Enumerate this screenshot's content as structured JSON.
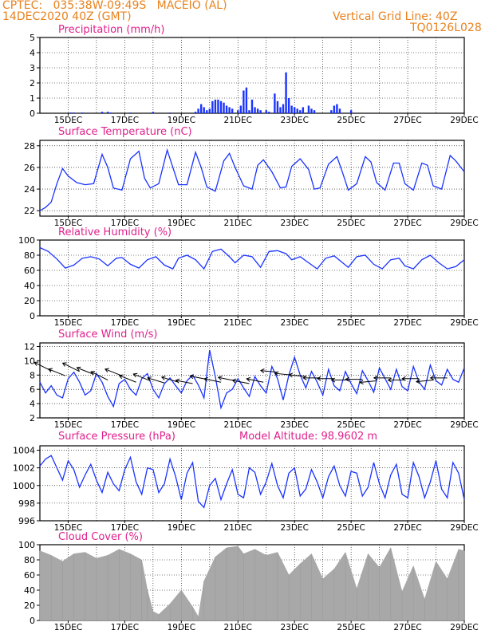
{
  "header": {
    "line1": "CPTEC:   035:38W-09:49S   MACEIO (AL)",
    "line2": "14DEC2020 40Z (GMT)",
    "vgrid": "Vertical Grid Line: 40Z",
    "code": "TQ0126L028"
  },
  "colors": {
    "header": "#e8821e",
    "title": "#e0208c",
    "series": "#1a33ff",
    "cloud": "#a8a8a8"
  },
  "x_ticks": [
    "15DEC",
    "17DEC",
    "19DEC",
    "21DEC",
    "23DEC",
    "25DEC",
    "27DEC",
    "29DEC"
  ],
  "chart_data": [
    {
      "type": "bar",
      "title": "Precipitation (mm/h)",
      "ylim": [
        0,
        5
      ],
      "yticks": [
        0,
        1,
        2,
        3,
        4,
        5
      ],
      "series": [
        {
          "x": [
            15.1,
            15.2,
            15.5,
            16.2,
            16.4,
            16.5,
            17.2,
            18.0,
            18.6,
            19.5,
            19.6,
            19.7,
            19.8,
            19.9,
            20.0,
            20.1,
            20.2,
            20.3,
            20.4,
            20.5,
            20.6,
            20.7,
            20.8,
            21.0,
            21.1,
            21.2,
            21.3,
            21.4,
            21.5,
            21.6,
            21.7,
            21.8,
            22.0,
            22.1,
            22.3,
            22.4,
            22.5,
            22.6,
            22.7,
            22.8,
            22.9,
            23.0,
            23.1,
            23.2,
            23.3,
            23.5,
            23.6,
            23.7,
            24.3,
            24.4,
            24.5,
            24.6,
            25.0
          ],
          "values": [
            0.05,
            0.05,
            0.05,
            0.1,
            0.1,
            0.05,
            0.05,
            0.1,
            0.05,
            0.1,
            0.3,
            0.6,
            0.4,
            0.2,
            0.3,
            0.8,
            0.9,
            0.9,
            0.8,
            0.7,
            0.5,
            0.4,
            0.3,
            0.2,
            0.5,
            1.5,
            1.7,
            0.2,
            0.9,
            0.4,
            0.3,
            0.2,
            0.2,
            0.1,
            1.3,
            0.8,
            0.4,
            0.6,
            2.7,
            1.0,
            0.5,
            0.4,
            0.3,
            0.2,
            0.4,
            0.5,
            0.3,
            0.2,
            0.2,
            0.5,
            0.6,
            0.3,
            0.2
          ]
        }
      ]
    },
    {
      "type": "line",
      "title": "Surface Temperature (nC)",
      "ylim": [
        21.5,
        28.5
      ],
      "yticks": [
        22,
        24,
        26,
        28
      ],
      "series": [
        {
          "x": [
            14.0,
            14.2,
            14.4,
            14.6,
            14.8,
            15.0,
            15.3,
            15.6,
            15.9,
            16.2,
            16.4,
            16.6,
            16.9,
            17.2,
            17.5,
            17.7,
            17.9,
            18.2,
            18.5,
            18.7,
            18.9,
            19.2,
            19.5,
            19.7,
            19.9,
            20.2,
            20.5,
            20.7,
            20.9,
            21.2,
            21.5,
            21.7,
            21.9,
            22.2,
            22.5,
            22.7,
            22.9,
            23.2,
            23.5,
            23.7,
            23.9,
            24.2,
            24.5,
            24.7,
            24.9,
            25.2,
            25.5,
            25.7,
            25.9,
            26.2,
            26.5,
            26.7,
            26.9,
            27.2,
            27.5,
            27.7,
            27.9,
            28.2,
            28.5,
            28.7,
            29.0
          ],
          "values": [
            22.0,
            22.3,
            22.8,
            24.5,
            25.9,
            25.2,
            24.6,
            24.4,
            24.5,
            27.2,
            26.0,
            24.1,
            23.9,
            26.8,
            27.5,
            25.0,
            24.1,
            24.5,
            27.6,
            26.0,
            24.4,
            24.4,
            27.4,
            26.0,
            24.2,
            23.8,
            26.6,
            27.3,
            26.0,
            24.3,
            24.0,
            26.2,
            26.7,
            25.6,
            24.1,
            24.2,
            26.1,
            26.8,
            25.8,
            24.0,
            24.1,
            26.3,
            27.0,
            25.5,
            23.9,
            24.5,
            27.0,
            26.5,
            24.6,
            23.9,
            26.4,
            26.4,
            24.5,
            23.9,
            26.4,
            26.2,
            24.3,
            24.0,
            27.1,
            26.6,
            25.6
          ]
        }
      ]
    },
    {
      "type": "line",
      "title": "Relative Humidity (%)",
      "ylim": [
        0,
        100
      ],
      "yticks": [
        0,
        20,
        40,
        60,
        80,
        100
      ],
      "series": [
        {
          "x": [
            14.0,
            14.3,
            14.6,
            14.9,
            15.2,
            15.5,
            15.8,
            16.1,
            16.4,
            16.7,
            16.9,
            17.2,
            17.5,
            17.8,
            18.1,
            18.4,
            18.7,
            18.9,
            19.2,
            19.5,
            19.8,
            20.1,
            20.4,
            20.7,
            20.9,
            21.2,
            21.5,
            21.8,
            22.1,
            22.4,
            22.7,
            22.9,
            23.2,
            23.5,
            23.8,
            24.1,
            24.4,
            24.7,
            24.9,
            25.2,
            25.5,
            25.8,
            26.1,
            26.4,
            26.7,
            26.9,
            27.2,
            27.5,
            27.8,
            28.1,
            28.4,
            28.7,
            29.0
          ],
          "values": [
            90,
            85,
            75,
            63,
            67,
            76,
            78,
            75,
            66,
            76,
            77,
            68,
            63,
            74,
            78,
            67,
            62,
            76,
            80,
            74,
            62,
            85,
            88,
            78,
            70,
            80,
            78,
            64,
            85,
            86,
            82,
            74,
            78,
            70,
            62,
            76,
            79,
            70,
            64,
            78,
            80,
            68,
            62,
            74,
            76,
            66,
            62,
            74,
            80,
            70,
            62,
            65,
            74
          ]
        }
      ]
    },
    {
      "type": "line",
      "title": "Surface Wind (m/s)",
      "ylim": [
        2,
        12.5
      ],
      "yticks": [
        2,
        4,
        6,
        8,
        10,
        12
      ],
      "series": [
        {
          "x": [
            14.0,
            14.2,
            14.4,
            14.6,
            14.8,
            15.0,
            15.2,
            15.4,
            15.6,
            15.8,
            16.0,
            16.2,
            16.4,
            16.6,
            16.8,
            17.0,
            17.2,
            17.4,
            17.6,
            17.8,
            18.0,
            18.2,
            18.4,
            18.6,
            18.8,
            19.0,
            19.2,
            19.4,
            19.6,
            19.8,
            20.0,
            20.2,
            20.4,
            20.6,
            20.8,
            21.0,
            21.2,
            21.4,
            21.6,
            21.8,
            22.0,
            22.2,
            22.4,
            22.6,
            22.8,
            23.0,
            23.2,
            23.4,
            23.6,
            23.8,
            24.0,
            24.2,
            24.4,
            24.6,
            24.8,
            25.0,
            25.2,
            25.4,
            25.6,
            25.8,
            26.0,
            26.2,
            26.4,
            26.6,
            26.8,
            27.0,
            27.2,
            27.4,
            27.6,
            27.8,
            28.0,
            28.2,
            28.4,
            28.6,
            28.8,
            29.0
          ],
          "values": [
            7.0,
            5.5,
            6.5,
            5.2,
            4.8,
            7.5,
            8.4,
            7.0,
            5.2,
            5.8,
            8.2,
            7.0,
            5.0,
            3.6,
            6.8,
            7.4,
            6.0,
            5.2,
            7.5,
            8.2,
            6.0,
            4.8,
            6.8,
            7.6,
            6.5,
            5.5,
            7.2,
            8.0,
            6.6,
            4.8,
            11.5,
            7.8,
            3.4,
            5.5,
            6.0,
            7.5,
            6.2,
            5.0,
            7.8,
            6.5,
            5.5,
            9.2,
            7.5,
            4.5,
            8.0,
            10.5,
            8.0,
            6.2,
            8.5,
            7.0,
            5.2,
            8.8,
            6.5,
            5.8,
            8.5,
            6.8,
            5.4,
            8.6,
            7.2,
            5.6,
            9.0,
            7.5,
            6.0,
            8.8,
            6.4,
            5.8,
            9.2,
            7.0,
            6.0,
            9.4,
            7.2,
            6.6,
            8.8,
            7.4,
            7.0,
            9.0
          ]
        }
      ],
      "wind_vectors": [
        {
          "x": 14.4,
          "speed": 8.6,
          "u": -5.0,
          "v": 2.5
        },
        {
          "x": 14.9,
          "speed": 7.9,
          "u": -5.0,
          "v": 2.0
        },
        {
          "x": 15.4,
          "speed": 8.5,
          "u": -5.0,
          "v": 2.5
        },
        {
          "x": 15.9,
          "speed": 8.1,
          "u": -5.0,
          "v": 2.0
        },
        {
          "x": 16.4,
          "speed": 7.3,
          "u": -5.0,
          "v": 2.5
        },
        {
          "x": 16.9,
          "speed": 7.9,
          "u": -5.0,
          "v": 2.0
        },
        {
          "x": 17.4,
          "speed": 7.0,
          "u": -5.0,
          "v": 2.0
        },
        {
          "x": 17.9,
          "speed": 7.2,
          "u": -5.0,
          "v": 2.0
        },
        {
          "x": 18.4,
          "speed": 6.9,
          "u": -5.0,
          "v": 1.5
        },
        {
          "x": 18.9,
          "speed": 7.0,
          "u": -5.0,
          "v": 1.5
        },
        {
          "x": 19.4,
          "speed": 6.8,
          "u": -5.0,
          "v": 1.0
        },
        {
          "x": 19.9,
          "speed": 7.4,
          "u": -5.0,
          "v": 1.0
        },
        {
          "x": 20.4,
          "speed": 7.0,
          "u": -5.0,
          "v": 1.0
        },
        {
          "x": 20.9,
          "speed": 7.2,
          "u": -5.0,
          "v": 1.0
        },
        {
          "x": 21.4,
          "speed": 6.8,
          "u": -5.0,
          "v": 1.0
        },
        {
          "x": 21.9,
          "speed": 7.0,
          "u": -5.0,
          "v": 1.0
        },
        {
          "x": 22.4,
          "speed": 8.4,
          "u": -5.0,
          "v": 0.5
        },
        {
          "x": 22.9,
          "speed": 8.0,
          "u": -5.0,
          "v": 0.5
        },
        {
          "x": 23.4,
          "speed": 7.8,
          "u": -5.0,
          "v": 0.5
        },
        {
          "x": 23.9,
          "speed": 7.6,
          "u": -5.0,
          "v": 0.0
        },
        {
          "x": 24.4,
          "speed": 7.5,
          "u": -5.0,
          "v": 0.0
        },
        {
          "x": 24.9,
          "speed": 7.3,
          "u": -5.0,
          "v": 0.0
        },
        {
          "x": 25.4,
          "speed": 7.4,
          "u": -5.0,
          "v": 0.0
        },
        {
          "x": 25.9,
          "speed": 7.2,
          "u": -5.0,
          "v": -0.5
        },
        {
          "x": 26.4,
          "speed": 7.6,
          "u": -5.0,
          "v": 0.0
        },
        {
          "x": 26.9,
          "speed": 7.3,
          "u": -5.0,
          "v": 0.0
        },
        {
          "x": 27.4,
          "speed": 7.5,
          "u": -5.0,
          "v": 0.0
        },
        {
          "x": 27.9,
          "speed": 7.3,
          "u": -5.0,
          "v": -0.5
        },
        {
          "x": 28.4,
          "speed": 7.6,
          "u": -5.0,
          "v": 0.0
        }
      ]
    },
    {
      "type": "line",
      "title": "Surface Pressure (hPa)",
      "annotation": "Model Altitude: 98.9602 m",
      "ylim": [
        996,
        1004.5
      ],
      "yticks": [
        996,
        998,
        1000,
        1002,
        1004
      ],
      "series": [
        {
          "x": [
            14.0,
            14.2,
            14.4,
            14.6,
            14.8,
            15.0,
            15.2,
            15.4,
            15.6,
            15.8,
            16.0,
            16.2,
            16.4,
            16.6,
            16.8,
            17.0,
            17.2,
            17.4,
            17.6,
            17.8,
            18.0,
            18.2,
            18.4,
            18.6,
            18.8,
            19.0,
            19.2,
            19.4,
            19.6,
            19.8,
            20.0,
            20.2,
            20.4,
            20.6,
            20.8,
            21.0,
            21.2,
            21.4,
            21.6,
            21.8,
            22.0,
            22.2,
            22.4,
            22.6,
            22.8,
            23.0,
            23.2,
            23.4,
            23.6,
            23.8,
            24.0,
            24.2,
            24.4,
            24.6,
            24.8,
            25.0,
            25.2,
            25.4,
            25.6,
            25.8,
            26.0,
            26.2,
            26.4,
            26.6,
            26.8,
            27.0,
            27.2,
            27.4,
            27.6,
            27.8,
            28.0,
            28.2,
            28.4,
            28.6,
            28.8,
            29.0
          ],
          "values": [
            1002.2,
            1003.0,
            1003.4,
            1002.0,
            1000.6,
            1002.8,
            1001.8,
            999.8,
            1001.2,
            1002.4,
            1000.6,
            999.2,
            1001.5,
            1000.2,
            999.4,
            1001.8,
            1003.2,
            1000.4,
            999.0,
            1002.0,
            1001.8,
            999.2,
            1000.2,
            1003.0,
            1001.0,
            998.4,
            1001.4,
            1002.6,
            998.2,
            997.5,
            1000.0,
            1000.8,
            998.4,
            1000.2,
            1001.8,
            999.0,
            998.6,
            1002.0,
            1001.5,
            999.0,
            1000.4,
            1002.5,
            1000.0,
            998.6,
            1001.4,
            1002.0,
            998.8,
            999.6,
            1001.8,
            1000.4,
            998.6,
            1001.0,
            1002.2,
            1000.0,
            998.8,
            1001.6,
            1001.4,
            998.8,
            999.8,
            1002.6,
            1000.2,
            998.6,
            1001.2,
            1002.4,
            999.0,
            998.6,
            1002.6,
            1001.0,
            998.6,
            1000.4,
            1002.8,
            999.6,
            998.6,
            1002.6,
            1001.4,
            998.4
          ]
        }
      ]
    },
    {
      "type": "area",
      "title": "Cloud Cover (%)",
      "ylim": [
        0,
        100
      ],
      "yticks": [
        0,
        20,
        40,
        60,
        80,
        100
      ],
      "series": [
        {
          "x": [
            14.0,
            14.4,
            14.8,
            15.2,
            15.6,
            16.0,
            16.4,
            16.8,
            17.2,
            17.6,
            17.8,
            18.0,
            18.2,
            18.6,
            19.0,
            19.4,
            19.6,
            19.8,
            20.2,
            20.6,
            21.0,
            21.2,
            21.6,
            22.0,
            22.4,
            22.8,
            23.2,
            23.6,
            24.0,
            24.4,
            24.8,
            25.2,
            25.6,
            26.0,
            26.4,
            26.8,
            27.2,
            27.6,
            28.0,
            28.4,
            28.8,
            29.0
          ],
          "values": [
            92,
            86,
            78,
            88,
            90,
            82,
            86,
            94,
            88,
            80,
            40,
            12,
            8,
            22,
            40,
            18,
            5,
            52,
            84,
            96,
            98,
            88,
            94,
            86,
            90,
            60,
            75,
            88,
            55,
            68,
            90,
            42,
            88,
            70,
            96,
            38,
            72,
            28,
            78,
            55,
            94,
            92
          ]
        }
      ]
    }
  ]
}
